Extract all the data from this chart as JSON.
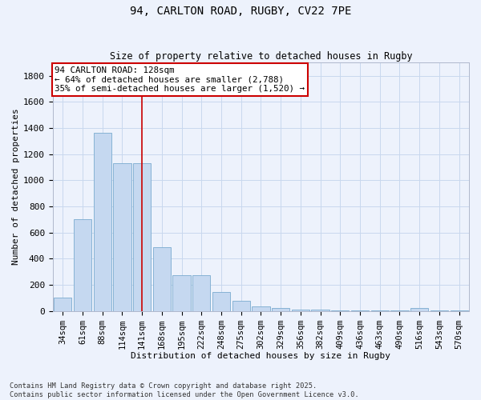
{
  "title1": "94, CARLTON ROAD, RUGBY, CV22 7PE",
  "title2": "Size of property relative to detached houses in Rugby",
  "xlabel": "Distribution of detached houses by size in Rugby",
  "ylabel": "Number of detached properties",
  "categories": [
    "34sqm",
    "61sqm",
    "88sqm",
    "114sqm",
    "141sqm",
    "168sqm",
    "195sqm",
    "222sqm",
    "248sqm",
    "275sqm",
    "302sqm",
    "329sqm",
    "356sqm",
    "382sqm",
    "409sqm",
    "436sqm",
    "463sqm",
    "490sqm",
    "516sqm",
    "543sqm",
    "570sqm"
  ],
  "values": [
    100,
    700,
    1360,
    1130,
    1130,
    490,
    270,
    270,
    145,
    75,
    35,
    25,
    8,
    8,
    5,
    5,
    5,
    5,
    20,
    5,
    5
  ],
  "bar_color": "#c5d8f0",
  "bar_edge_color": "#7aabcf",
  "vline_x": 4,
  "vline_color": "#cc0000",
  "annotation_text": "94 CARLTON ROAD: 128sqm\n← 64% of detached houses are smaller (2,788)\n35% of semi-detached houses are larger (1,520) →",
  "annotation_box_color": "#ffffff",
  "annotation_box_edge": "#cc0000",
  "bg_color": "#edf2fc",
  "grid_color": "#c8d8ee",
  "ylim": [
    0,
    1900
  ],
  "yticks": [
    0,
    200,
    400,
    600,
    800,
    1000,
    1200,
    1400,
    1600,
    1800
  ],
  "footer1": "Contains HM Land Registry data © Crown copyright and database right 2025.",
  "footer2": "Contains public sector information licensed under the Open Government Licence v3.0."
}
